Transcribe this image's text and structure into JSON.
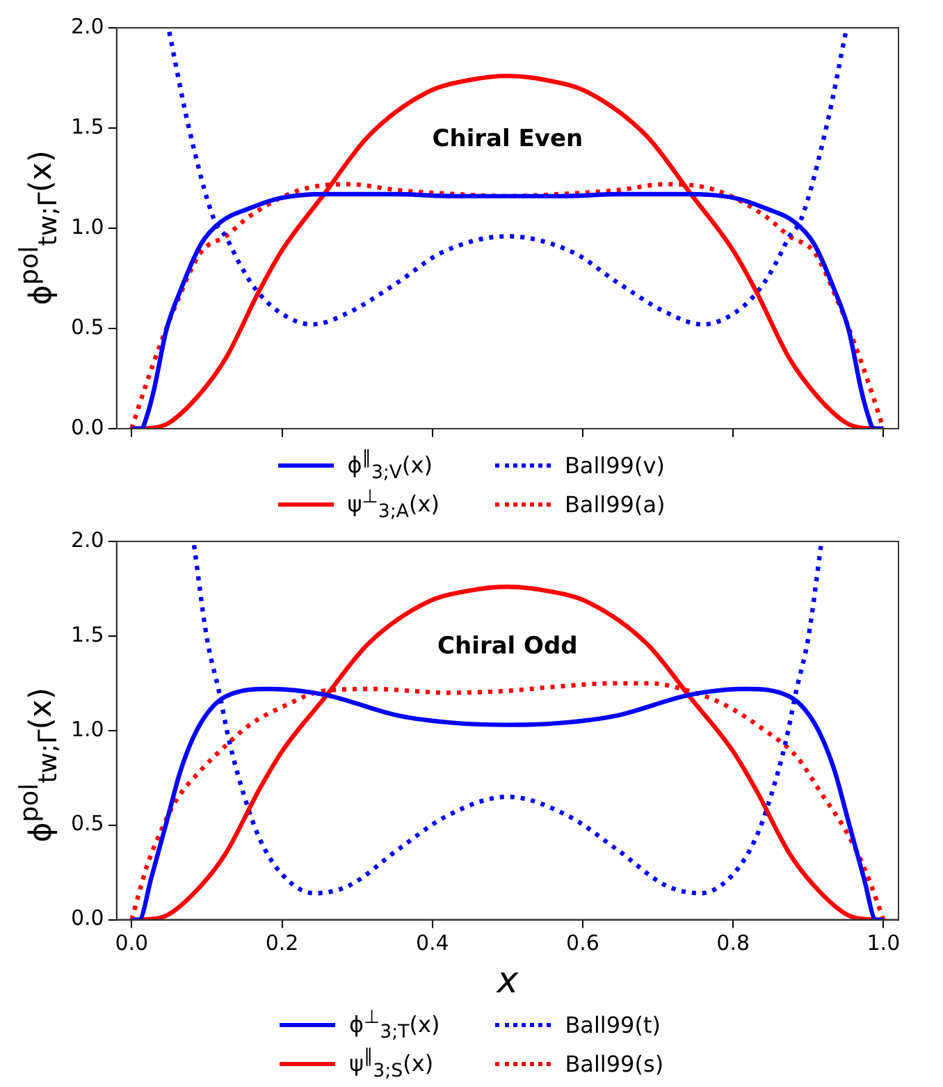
{
  "chart_data": [
    {
      "type": "line",
      "ylabel": "ϕ$^{pol}$$_{tw;Γ}$(x)",
      "annotations": [
        "Chiral Even"
      ],
      "legend": "bottom",
      "tick_labels": "y",
      "xlim": [
        -0.02,
        1.02
      ],
      "xticks": [
        0,
        0.2,
        0.4,
        0.6,
        0.8,
        1
      ],
      "ylim": [
        0,
        2
      ],
      "yticks": [
        {
          "value": 0,
          "label": "0.0"
        },
        {
          "value": 0.5,
          "label": "0.5"
        },
        {
          "value": 1,
          "label": "1.0"
        },
        {
          "value": 1.5,
          "label": "1.5"
        },
        {
          "value": 2,
          "label": "2.0"
        }
      ],
      "series": [
        {
          "name": "ϕ$^{∥}$$_{3;V}$(x)",
          "color": "#0000ff",
          "line_style": "solid",
          "x": [
            0,
            0.013,
            0.02,
            0.03,
            0.046,
            0.066,
            0.092,
            0.118,
            0.157,
            0.197,
            0.256,
            0.35,
            0.43,
            0.5,
            0.57,
            0.65,
            0.744,
            0.803,
            0.843,
            0.882,
            0.908,
            0.934,
            0.954,
            0.97,
            0.98,
            0.987,
            1
          ],
          "values": [
            0,
            0,
            0.06,
            0.2,
            0.49,
            0.7,
            0.92,
            1.03,
            1.1,
            1.15,
            1.17,
            1.17,
            1.16,
            1.16,
            1.16,
            1.17,
            1.17,
            1.15,
            1.1,
            1.03,
            0.92,
            0.7,
            0.49,
            0.2,
            0.06,
            0,
            0
          ]
        },
        {
          "name": "ψ$^{⊥}$$_{3;A}$(x)",
          "color": "#ff0000",
          "line_style": "solid",
          "x": [
            0,
            0.03,
            0.05,
            0.09,
            0.125,
            0.17,
            0.2,
            0.256,
            0.315,
            0.394,
            0.45,
            0.5,
            0.55,
            0.606,
            0.685,
            0.744,
            0.8,
            0.83,
            0.875,
            0.91,
            0.95,
            0.97,
            1
          ],
          "values": [
            0,
            0.005,
            0.03,
            0.17,
            0.35,
            0.69,
            0.89,
            1.17,
            1.46,
            1.68,
            1.74,
            1.76,
            1.74,
            1.68,
            1.46,
            1.17,
            0.89,
            0.69,
            0.35,
            0.17,
            0.03,
            0.005,
            0
          ]
        },
        {
          "name": "Ball99(v)",
          "color": "#0000ff",
          "line_style": "dotted",
          "x": [
            0.05,
            0.075,
            0.11,
            0.125,
            0.144,
            0.164,
            0.197,
            0.24,
            0.289,
            0.354,
            0.413,
            0.5,
            0.587,
            0.646,
            0.711,
            0.76,
            0.803,
            0.836,
            0.856,
            0.875,
            0.89,
            0.925,
            0.95
          ],
          "values": [
            1.98,
            1.52,
            1.04,
            0.96,
            0.82,
            0.7,
            0.58,
            0.52,
            0.58,
            0.73,
            0.88,
            0.96,
            0.88,
            0.73,
            0.58,
            0.52,
            0.58,
            0.7,
            0.82,
            0.96,
            1.04,
            1.52,
            1.98
          ]
        },
        {
          "name": "Ball99(a)",
          "color": "#ff0000",
          "line_style": "dotted",
          "x": [
            0,
            0.02,
            0.039,
            0.059,
            0.092,
            0.125,
            0.157,
            0.223,
            0.289,
            0.354,
            0.433,
            0.5,
            0.567,
            0.646,
            0.711,
            0.777,
            0.843,
            0.875,
            0.908,
            0.941,
            0.961,
            0.98,
            1
          ],
          "values": [
            0,
            0.23,
            0.43,
            0.62,
            0.88,
            0.96,
            1.06,
            1.19,
            1.22,
            1.19,
            1.17,
            1.16,
            1.17,
            1.19,
            1.22,
            1.19,
            1.06,
            0.96,
            0.88,
            0.62,
            0.43,
            0.23,
            0
          ]
        }
      ]
    },
    {
      "type": "line",
      "xlabel": "x",
      "ylabel": "ϕ$^{pol}$$_{tw;Γ}$(x)",
      "annotations": [
        "Chiral Odd"
      ],
      "legend": "bottom",
      "xlim": [
        -0.02,
        1.02
      ],
      "xticks": [
        {
          "value": 0,
          "label": "0.0"
        },
        {
          "value": 0.2,
          "label": "0.2"
        },
        {
          "value": 0.4,
          "label": "0.4"
        },
        {
          "value": 0.6,
          "label": "0.6"
        },
        {
          "value": 0.8,
          "label": "0.8"
        },
        {
          "value": 1,
          "label": "1.0"
        }
      ],
      "ylim": [
        0,
        2
      ],
      "yticks": [
        {
          "value": 0,
          "label": "0.0"
        },
        {
          "value": 0.5,
          "label": "0.5"
        },
        {
          "value": 1,
          "label": "1.0"
        },
        {
          "value": 1.5,
          "label": "1.5"
        },
        {
          "value": 2,
          "label": "2.0"
        }
      ],
      "series": [
        {
          "name": "ϕ$^{⊥}$$_{3;T}$(x)",
          "color": "#0000ff",
          "line_style": "solid",
          "x": [
            0,
            0.01,
            0.026,
            0.046,
            0.066,
            0.092,
            0.125,
            0.184,
            0.256,
            0.354,
            0.43,
            0.5,
            0.57,
            0.646,
            0.744,
            0.816,
            0.875,
            0.908,
            0.934,
            0.954,
            0.974,
            0.99,
            1
          ],
          "values": [
            0,
            0,
            0.22,
            0.51,
            0.8,
            1.04,
            1.18,
            1.22,
            1.19,
            1.08,
            1.04,
            1.03,
            1.04,
            1.08,
            1.19,
            1.22,
            1.18,
            1.04,
            0.8,
            0.51,
            0.22,
            0,
            0
          ]
        },
        {
          "name": "ψ$^{∥}$$_{3;S}$(x)",
          "color": "#ff0000",
          "line_style": "solid",
          "x": [
            0,
            0.03,
            0.05,
            0.09,
            0.125,
            0.17,
            0.2,
            0.256,
            0.315,
            0.394,
            0.45,
            0.5,
            0.55,
            0.606,
            0.685,
            0.744,
            0.8,
            0.83,
            0.875,
            0.91,
            0.95,
            0.97,
            1
          ],
          "values": [
            0,
            0.005,
            0.03,
            0.17,
            0.35,
            0.69,
            0.89,
            1.17,
            1.46,
            1.68,
            1.74,
            1.76,
            1.74,
            1.68,
            1.46,
            1.17,
            0.89,
            0.69,
            0.35,
            0.17,
            0.03,
            0.005,
            0
          ]
        },
        {
          "name": "Ball99(t)",
          "color": "#0000ff",
          "line_style": "dotted",
          "x": [
            0.083,
            0.1,
            0.116,
            0.13,
            0.15,
            0.17,
            0.2,
            0.243,
            0.289,
            0.354,
            0.42,
            0.5,
            0.58,
            0.646,
            0.711,
            0.757,
            0.8,
            0.83,
            0.85,
            0.87,
            0.884,
            0.9,
            0.917
          ],
          "values": [
            1.98,
            1.49,
            1.21,
            0.94,
            0.65,
            0.43,
            0.24,
            0.14,
            0.18,
            0.37,
            0.55,
            0.65,
            0.55,
            0.37,
            0.18,
            0.14,
            0.24,
            0.43,
            0.65,
            0.94,
            1.21,
            1.49,
            1.98
          ]
        },
        {
          "name": "Ball99(s)",
          "color": "#ff0000",
          "line_style": "dotted",
          "x": [
            0,
            0.02,
            0.039,
            0.059,
            0.092,
            0.125,
            0.157,
            0.203,
            0.256,
            0.321,
            0.42,
            0.5,
            0.558,
            0.643,
            0.689,
            0.741,
            0.787,
            0.839,
            0.885,
            0.917,
            0.95,
            0.976,
            1
          ],
          "values": [
            0,
            0.28,
            0.47,
            0.63,
            0.79,
            0.92,
            1.03,
            1.13,
            1.21,
            1.22,
            1.2,
            1.21,
            1.23,
            1.25,
            1.25,
            1.21,
            1.14,
            1.01,
            0.86,
            0.67,
            0.47,
            0.26,
            0
          ]
        }
      ]
    }
  ]
}
